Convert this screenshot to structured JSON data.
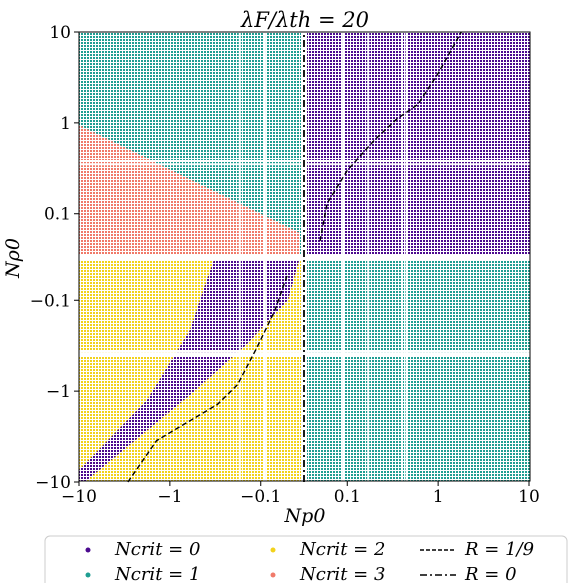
{
  "chart_data": {
    "type": "scatter",
    "title": "λF/λth = 20",
    "xlabel": "Np0",
    "ylabel": "Nρ0",
    "x_scale": "symlog",
    "y_scale": "symlog",
    "xlim": [
      -10,
      10
    ],
    "ylim": [
      -10,
      10
    ],
    "x_ticks": [
      "-10",
      "-1",
      "-0.1",
      "0.1",
      "1",
      "10"
    ],
    "y_ticks": [
      "10",
      "1",
      "0.1",
      "-0.1",
      "-1",
      "-10"
    ],
    "regions": [
      {
        "name": "Ncrit = 0",
        "color": "#4b0a8f"
      },
      {
        "name": "Ncrit = 1",
        "color": "#1f9e92"
      },
      {
        "name": "Ncrit = 2",
        "color": "#f2d21c"
      },
      {
        "name": "Ncrit = 3",
        "color": "#f07a6a"
      }
    ],
    "series": [
      {
        "name": "R = 1/9",
        "style": "dashed",
        "color": "#000000",
        "x": [
          -2.9,
          -1.4,
          -0.3,
          -0.18,
          -0.11,
          -0.07,
          -0.05
        ],
        "y": [
          -10,
          -3.5,
          -1.4,
          -0.85,
          -0.33,
          -0.13,
          -0.05
        ]
      },
      {
        "name": "R = 1/9",
        "style": "dashed",
        "color": "#000000",
        "x": [
          0.05,
          0.06,
          0.1,
          0.2,
          0.35,
          0.6,
          1.0,
          1.8
        ],
        "y": [
          0.05,
          0.13,
          0.3,
          0.65,
          1.1,
          1.6,
          3.5,
          10
        ]
      },
      {
        "name": "R = 0",
        "style": "dashdot",
        "color": "#000000",
        "x": [
          0,
          0
        ],
        "y": [
          -10,
          10
        ]
      }
    ],
    "legend": {
      "placement": "bottom",
      "entries": [
        {
          "label": "Ncrit = 0",
          "marker": "dot",
          "color": "#4b0a8f"
        },
        {
          "label": "Ncrit = 2",
          "marker": "dot",
          "color": "#f2d21c"
        },
        {
          "label": "R = 1/9",
          "marker": "dashed",
          "color": "#000000"
        },
        {
          "label": "Ncrit = 1",
          "marker": "dot",
          "color": "#1f9e92"
        },
        {
          "label": "Ncrit = 3",
          "marker": "dot",
          "color": "#f07a6a"
        },
        {
          "label": "R = 0",
          "marker": "dashdot",
          "color": "#000000"
        }
      ]
    }
  }
}
